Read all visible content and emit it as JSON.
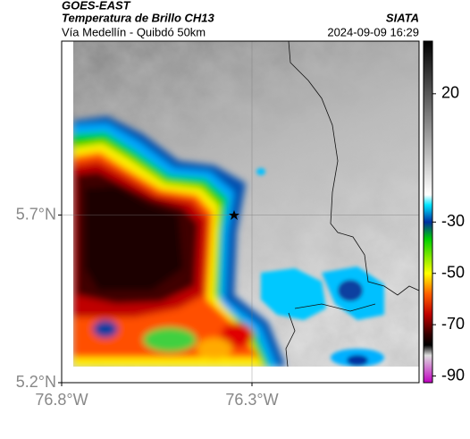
{
  "map": {
    "title": "GOES-EAST",
    "subtitle": "Temperatura de Brillo CH13",
    "route": "Vía Medellín - Quibdó 50km",
    "source": "SIATA",
    "timestamp": "2024-09-09 16:29",
    "xlim": [
      -76.8,
      -75.861
    ],
    "ylim": [
      5.2,
      6.219
    ],
    "xticks": [
      {
        "value": -76.8,
        "label": "76.8°W"
      },
      {
        "value": -76.3,
        "label": "76.3°W"
      }
    ],
    "yticks": [
      {
        "value": 5.2,
        "label": "5.2°N"
      },
      {
        "value": 5.7,
        "label": "5.7°N"
      }
    ],
    "clim": [
      -92.6,
      40.5
    ],
    "cticks": [
      20,
      -30,
      -50,
      -70,
      -90
    ],
    "grid": true
  }
}
